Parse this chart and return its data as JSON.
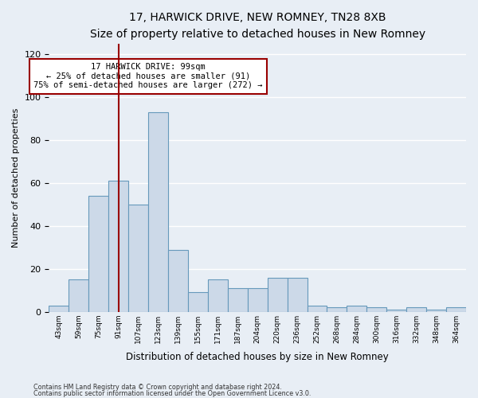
{
  "title": "17, HARWICK DRIVE, NEW ROMNEY, TN28 8XB",
  "subtitle": "Size of property relative to detached houses in New Romney",
  "xlabel": "Distribution of detached houses by size in New Romney",
  "ylabel": "Number of detached properties",
  "categories": [
    "43sqm",
    "59sqm",
    "75sqm",
    "91sqm",
    "107sqm",
    "123sqm",
    "139sqm",
    "155sqm",
    "171sqm",
    "187sqm",
    "204sqm",
    "220sqm",
    "236sqm",
    "252sqm",
    "268sqm",
    "284sqm",
    "300sqm",
    "316sqm",
    "332sqm",
    "348sqm",
    "364sqm"
  ],
  "values": [
    3,
    15,
    54,
    61,
    50,
    93,
    29,
    9,
    15,
    11,
    11,
    16,
    16,
    3,
    2,
    3,
    2,
    1,
    2,
    1,
    2
  ],
  "bar_color": "#ccd9e8",
  "bar_edge_color": "#6699bb",
  "vline_x": 3.0,
  "vline_color": "#990000",
  "annotation_text": "17 HARWICK DRIVE: 99sqm\n← 25% of detached houses are smaller (91)\n75% of semi-detached houses are larger (272) →",
  "annotation_box_color": "#ffffff",
  "annotation_box_edge": "#990000",
  "ylim": [
    0,
    125
  ],
  "yticks": [
    0,
    20,
    40,
    60,
    80,
    100,
    120
  ],
  "footer1": "Contains HM Land Registry data © Crown copyright and database right 2024.",
  "footer2": "Contains public sector information licensed under the Open Government Licence v3.0.",
  "bg_color": "#e8eef5",
  "plot_bg_color": "#e8eef5"
}
